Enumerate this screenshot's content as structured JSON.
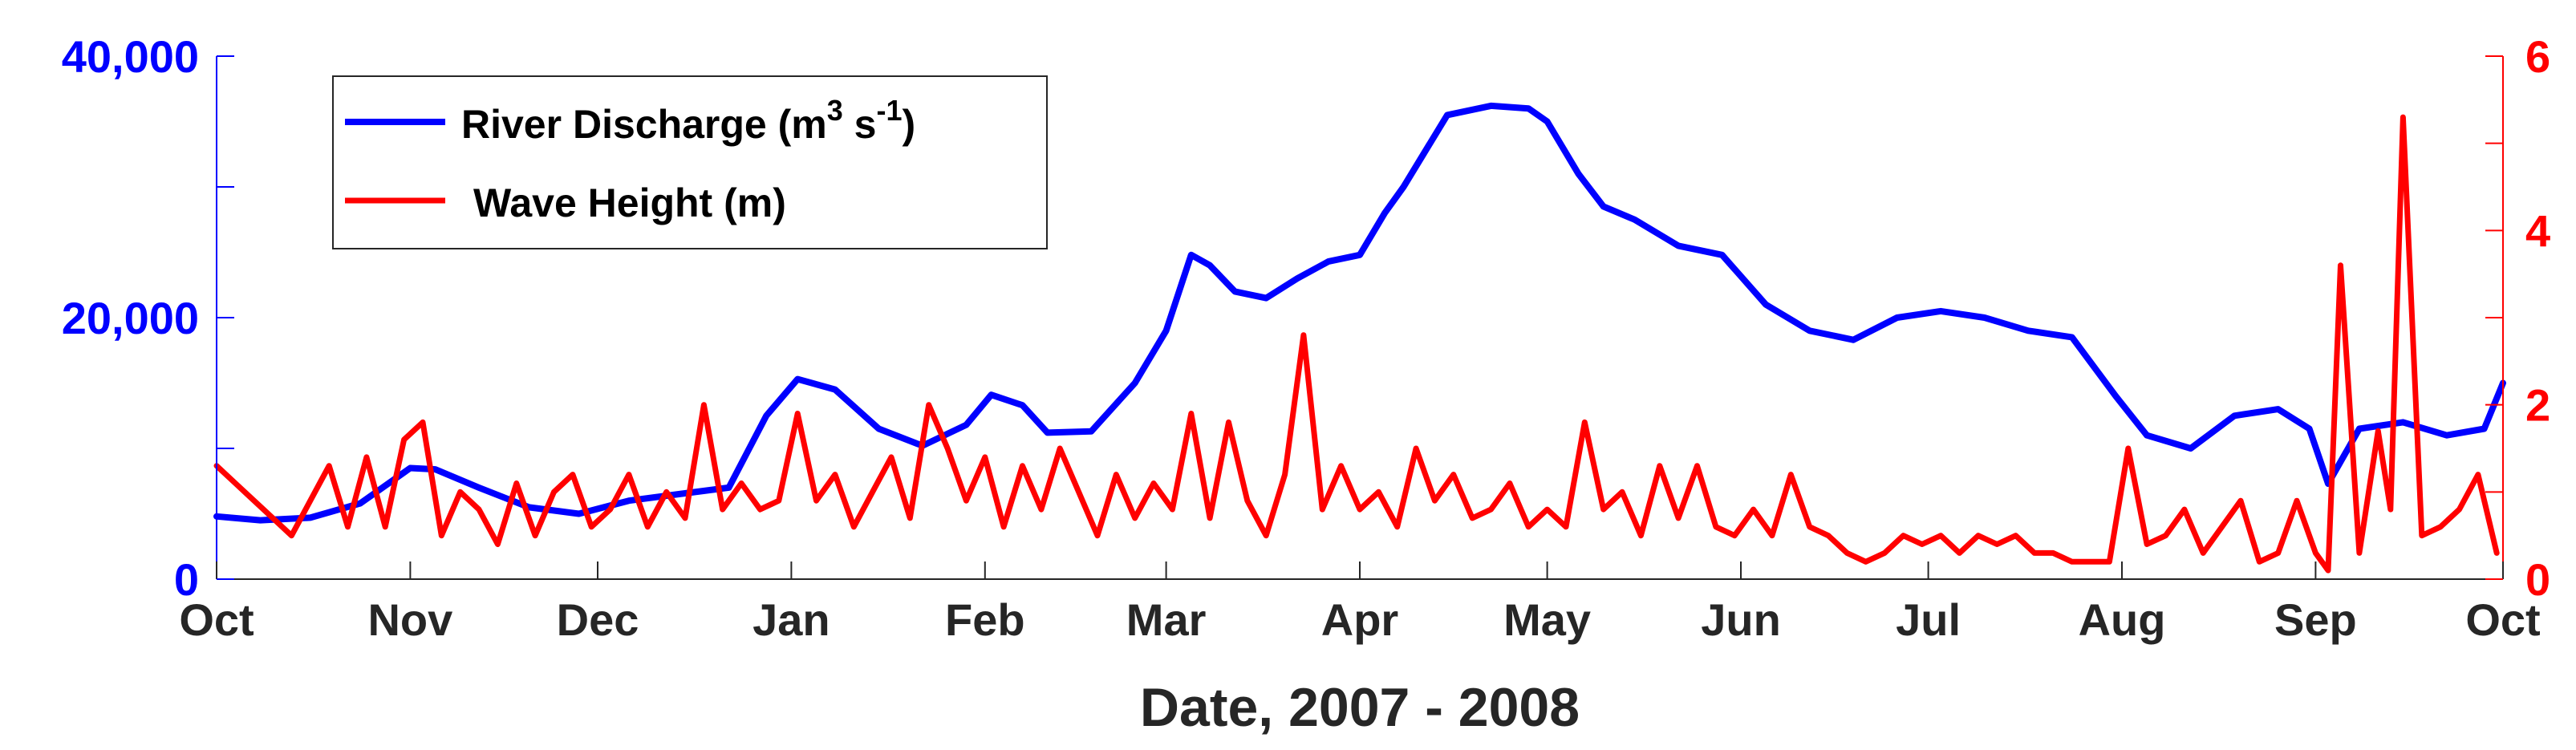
{
  "chart_data": {
    "type": "line",
    "xlabel": "Date, 2007 - 2008",
    "x_ticks": [
      "Oct",
      "Nov",
      "Dec",
      "Jan",
      "Feb",
      "Mar",
      "Apr",
      "May",
      "Jun",
      "Jul",
      "Aug",
      "Sep",
      "Oct"
    ],
    "x_tick_dates": [
      "2007-10-01",
      "2007-11-01",
      "2007-12-01",
      "2008-01-01",
      "2008-02-01",
      "2008-03-01",
      "2008-04-01",
      "2008-05-01",
      "2008-06-01",
      "2008-07-01",
      "2008-08-01",
      "2008-09-01",
      "2008-10-01"
    ],
    "xlim": [
      "2007-10-01",
      "2008-10-01"
    ],
    "y_left": {
      "ylim": [
        0,
        40000
      ],
      "ticks": [
        0,
        20000,
        40000
      ],
      "tick_labels": [
        "0",
        "20,000",
        "40,000"
      ],
      "color": "#0000ff"
    },
    "y_right": {
      "ylim": [
        0,
        6
      ],
      "ticks": [
        0,
        2,
        4,
        6
      ],
      "tick_labels": [
        "0",
        "2",
        "4",
        "6"
      ],
      "color": "#ff0000"
    },
    "grid": false,
    "legend": "top-left",
    "series": [
      {
        "name": "River Discharge (m³ s⁻¹)",
        "legend_label": {
          "main": "River Discharge (m",
          "sup1": "3",
          "mid": " s",
          "sup2": "-1",
          "end": ")"
        },
        "axis": "left",
        "color": "#0000ff",
        "x": [
          "2007-10-01",
          "2007-10-08",
          "2007-10-16",
          "2007-10-24",
          "2007-11-01",
          "2007-11-05",
          "2007-11-12",
          "2007-11-20",
          "2007-11-28",
          "2007-12-06",
          "2007-12-14",
          "2007-12-22",
          "2007-12-28",
          "2008-01-02",
          "2008-01-08",
          "2008-01-15",
          "2008-01-22",
          "2008-01-29",
          "2008-02-02",
          "2008-02-07",
          "2008-02-11",
          "2008-02-18",
          "2008-02-25",
          "2008-03-01",
          "2008-03-05",
          "2008-03-08",
          "2008-03-12",
          "2008-03-17",
          "2008-03-22",
          "2008-03-27",
          "2008-04-01",
          "2008-04-05",
          "2008-04-08",
          "2008-04-15",
          "2008-04-22",
          "2008-04-28",
          "2008-05-01",
          "2008-05-06",
          "2008-05-10",
          "2008-05-15",
          "2008-05-22",
          "2008-05-29",
          "2008-06-05",
          "2008-06-12",
          "2008-06-19",
          "2008-06-26",
          "2008-07-03",
          "2008-07-10",
          "2008-07-17",
          "2008-07-24",
          "2008-07-31",
          "2008-08-05",
          "2008-08-12",
          "2008-08-19",
          "2008-08-26",
          "2008-08-31",
          "2008-09-03",
          "2008-09-08",
          "2008-09-15",
          "2008-09-22",
          "2008-09-28",
          "2008-10-01"
        ],
        "values": [
          4800,
          4500,
          4700,
          5800,
          8500,
          8400,
          7000,
          5500,
          5000,
          6000,
          6500,
          7000,
          12500,
          15300,
          14500,
          11500,
          10200,
          11800,
          14100,
          13300,
          11200,
          11300,
          15000,
          19000,
          24800,
          24000,
          22000,
          21500,
          23000,
          24300,
          24800,
          28000,
          30000,
          35500,
          36200,
          36000,
          35000,
          31000,
          28500,
          27500,
          25500,
          24800,
          21000,
          19000,
          18300,
          20000,
          20500,
          20000,
          19000,
          18500,
          14000,
          11000,
          10000,
          12500,
          13000,
          11500,
          7300,
          11500,
          12000,
          11000,
          11500,
          15000
        ]
      },
      {
        "name": "Wave Height (m)",
        "axis": "right",
        "color": "#ff0000",
        "x": [
          "2007-10-01",
          "2007-10-04",
          "2007-10-07",
          "2007-10-10",
          "2007-10-13",
          "2007-10-16",
          "2007-10-19",
          "2007-10-22",
          "2007-10-25",
          "2007-10-28",
          "2007-10-31",
          "2007-11-03",
          "2007-11-06",
          "2007-11-09",
          "2007-11-12",
          "2007-11-15",
          "2007-11-18",
          "2007-11-21",
          "2007-11-24",
          "2007-11-27",
          "2007-11-30",
          "2007-12-03",
          "2007-12-06",
          "2007-12-09",
          "2007-12-12",
          "2007-12-15",
          "2007-12-18",
          "2007-12-21",
          "2007-12-24",
          "2007-12-27",
          "2007-12-30",
          "2008-01-02",
          "2008-01-05",
          "2008-01-08",
          "2008-01-11",
          "2008-01-14",
          "2008-01-17",
          "2008-01-20",
          "2008-01-23",
          "2008-01-26",
          "2008-01-29",
          "2008-02-01",
          "2008-02-04",
          "2008-02-07",
          "2008-02-10",
          "2008-02-13",
          "2008-02-16",
          "2008-02-19",
          "2008-02-22",
          "2008-02-25",
          "2008-02-28",
          "2008-03-02",
          "2008-03-05",
          "2008-03-08",
          "2008-03-11",
          "2008-03-14",
          "2008-03-17",
          "2008-03-20",
          "2008-03-23",
          "2008-03-26",
          "2008-03-29",
          "2008-04-01",
          "2008-04-04",
          "2008-04-07",
          "2008-04-10",
          "2008-04-13",
          "2008-04-16",
          "2008-04-19",
          "2008-04-22",
          "2008-04-25",
          "2008-04-28",
          "2008-05-01",
          "2008-05-04",
          "2008-05-07",
          "2008-05-10",
          "2008-05-13",
          "2008-05-16",
          "2008-05-19",
          "2008-05-22",
          "2008-05-25",
          "2008-05-28",
          "2008-05-31",
          "2008-06-03",
          "2008-06-06",
          "2008-06-09",
          "2008-06-12",
          "2008-06-15",
          "2008-06-18",
          "2008-06-21",
          "2008-06-24",
          "2008-06-27",
          "2008-06-30",
          "2008-07-03",
          "2008-07-06",
          "2008-07-09",
          "2008-07-12",
          "2008-07-15",
          "2008-07-18",
          "2008-07-21",
          "2008-07-24",
          "2008-07-27",
          "2008-07-30",
          "2008-08-02",
          "2008-08-05",
          "2008-08-08",
          "2008-08-11",
          "2008-08-14",
          "2008-08-17",
          "2008-08-20",
          "2008-08-23",
          "2008-08-26",
          "2008-08-29",
          "2008-09-01",
          "2008-09-03",
          "2008-09-05",
          "2008-09-08",
          "2008-09-11",
          "2008-09-13",
          "2008-09-15",
          "2008-09-18",
          "2008-09-21",
          "2008-09-24",
          "2008-09-27",
          "2008-09-30"
        ],
        "values": [
          1.3,
          1.1,
          0.9,
          0.7,
          0.5,
          0.9,
          1.3,
          0.6,
          1.4,
          0.6,
          1.6,
          1.8,
          0.5,
          1.0,
          0.8,
          0.4,
          1.1,
          0.5,
          1.0,
          1.2,
          0.6,
          0.8,
          1.2,
          0.6,
          1.0,
          0.7,
          2.0,
          0.8,
          1.1,
          0.8,
          0.9,
          1.9,
          0.9,
          1.2,
          0.6,
          1.0,
          1.4,
          0.7,
          2.0,
          1.5,
          0.9,
          1.4,
          0.6,
          1.3,
          0.8,
          1.5,
          1.0,
          0.5,
          1.2,
          0.7,
          1.1,
          0.8,
          1.9,
          0.7,
          1.8,
          0.9,
          0.5,
          1.2,
          2.8,
          0.8,
          1.3,
          0.8,
          1.0,
          0.6,
          1.5,
          0.9,
          1.2,
          0.7,
          0.8,
          1.1,
          0.6,
          0.8,
          0.6,
          1.8,
          0.8,
          1.0,
          0.5,
          1.3,
          0.7,
          1.3,
          0.6,
          0.5,
          0.8,
          0.5,
          1.2,
          0.6,
          0.5,
          0.3,
          0.2,
          0.3,
          0.5,
          0.4,
          0.5,
          0.3,
          0.5,
          0.4,
          0.5,
          0.3,
          0.3,
          0.2,
          0.2,
          0.2,
          1.5,
          0.4,
          0.5,
          0.8,
          0.3,
          0.6,
          0.9,
          0.2,
          0.3,
          0.9,
          0.3,
          0.1,
          3.6,
          0.3,
          1.7,
          0.8,
          5.3,
          0.5,
          0.6,
          0.8,
          1.2,
          0.3
        ]
      }
    ]
  }
}
